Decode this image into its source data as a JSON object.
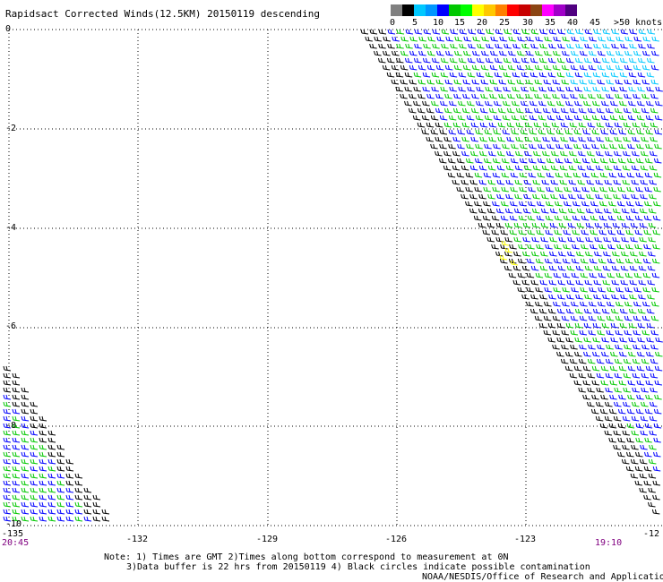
{
  "title": "Rapidsact Corrected Winds(12.5KM) 20150119 descending",
  "colorbar": {
    "colors": [
      "#808080",
      "#000000",
      "#00c8ff",
      "#0096ff",
      "#0000ff",
      "#00c800",
      "#00ff00",
      "#ffff00",
      "#ffc800",
      "#ff8000",
      "#ff0000",
      "#c80000",
      "#8b4513",
      "#ff00ff",
      "#a000c8",
      "#500080"
    ],
    "labels": [
      "0",
      "5",
      "10",
      "15",
      "20",
      "25",
      "30",
      "35",
      "40",
      "45",
      ">50 knots"
    ]
  },
  "map": {
    "lat_labels": [
      "0",
      "-2",
      "-4",
      "-6",
      "-8",
      "-10"
    ],
    "lon_labels": [
      "-135",
      "-132",
      "-129",
      "-126",
      "-123",
      "-12"
    ],
    "times": {
      "left": "20:45",
      "right": "19:10"
    }
  },
  "notes": {
    "line1": "Note: 1) Times are GMT 2)Times along bottom correspond to measurement at 0N",
    "line2": "3)Data buffer is 22 hrs from 20150119 4) Black circles indicate possible contamination",
    "credit": "NOAA/NESDIS/Office of Research and Applications"
  }
}
